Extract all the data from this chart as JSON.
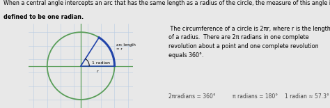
{
  "bg_color": "#e8e8e8",
  "panel_bg": "#ffffff",
  "top_text_line1": "When a central angle intercepts an arc that has the same length as a radius of the circle, the measure of this angle is",
  "top_text_line2": "defined to be one radian.",
  "right_para": " The circumference of a circle is 2πr, where r is the length\nof a radius.  There are 2π radians in one complete\nrevolution about a point and one complete revolution\nequals 360°.",
  "bottom_formula1": "2πradians = 360°",
  "bottom_formula2": "π radians = 180°",
  "bottom_formula3": "1 radian ≈ 57.3°",
  "circle_color": "#5a9e5a",
  "grid_color": "#b8cce4",
  "axis_color": "#5a9e5a",
  "radius_color": "#2244aa",
  "arc_label": "arc length\n= r",
  "radius_label": "1 radian",
  "r_label": "r"
}
